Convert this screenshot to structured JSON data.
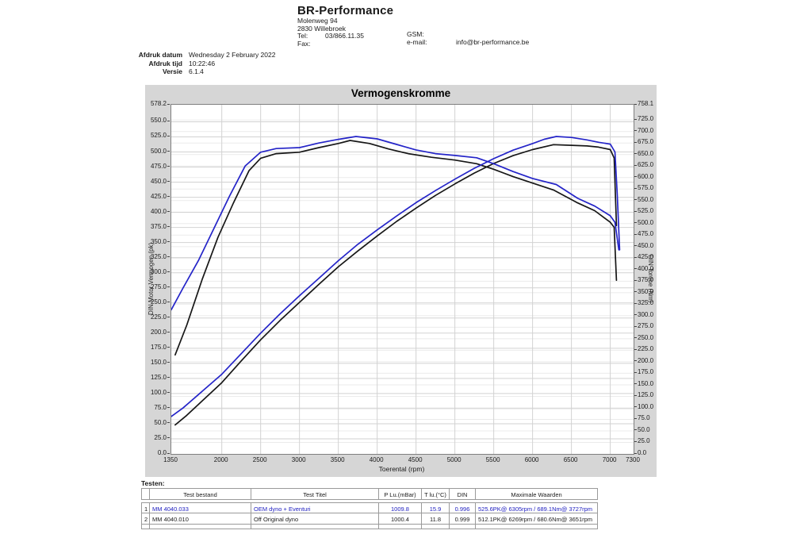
{
  "header": {
    "company": "BR-Performance",
    "address_line1": "Molenweg 94",
    "address_line2": "2830 Willebroek",
    "tel_label": "Tel:",
    "tel_value": "03/866.11.35",
    "fax_label": "Fax:",
    "fax_value": "",
    "gsm_label": "GSM:",
    "gsm_value": "",
    "email_label": "e-mail:",
    "email_value": "info@br-performance.be"
  },
  "meta": {
    "rows": [
      {
        "label": "Afdruk datum",
        "value": "Wednesday 2 February 2022"
      },
      {
        "label": "Afdruk tijd",
        "value": "10:22:46"
      },
      {
        "label": "Versie",
        "value": "6.1.4"
      }
    ]
  },
  "chart_data": {
    "type": "line",
    "title": "Vermogenskromme",
    "xlabel": "Toerental (rpm)",
    "ylabel_left": "DIN Motor Vermogen (pk)",
    "ylabel_right": "DIN Torque (Nm)",
    "x_range": [
      1350,
      7300
    ],
    "y_left_range": [
      0,
      578.2
    ],
    "y_right_range": [
      0,
      758.1
    ],
    "grid": true,
    "x_ticks": [
      "1350",
      "2000",
      "2500",
      "3000",
      "3500",
      "4000",
      "4500",
      "5000",
      "5500",
      "6000",
      "6500",
      "7000",
      "7300"
    ],
    "y_left_ticks": [
      "578.2",
      "550.0",
      "525.0",
      "500.0",
      "475.0",
      "450.0",
      "425.0",
      "400.0",
      "375.0",
      "350.0",
      "325.0",
      "300.0",
      "275.0",
      "250.0",
      "225.0",
      "200.0",
      "175.0",
      "150.0",
      "125.0",
      "100.0",
      "75.0",
      "50.0",
      "25.0",
      "0.0"
    ],
    "y_right_ticks": [
      "758.1",
      "725.0",
      "700.0",
      "675.0",
      "650.0",
      "625.0",
      "600.0",
      "575.0",
      "550.0",
      "525.0",
      "500.0",
      "475.0",
      "450.0",
      "425.0",
      "400.0",
      "375.0",
      "350.0",
      "325.0",
      "300.0",
      "275.0",
      "250.0",
      "225.0",
      "200.0",
      "175.0",
      "150.0",
      "125.0",
      "100.0",
      "75.0",
      "50.0",
      "25.0",
      "0.0"
    ],
    "colors": {
      "run1": "#2424c8",
      "run2": "#161616",
      "grid_major": "#d2d2d2",
      "grid_minor": "#ebebeb",
      "plot_border": "#7f7f7f"
    },
    "series": [
      {
        "name": "Off Original dyno - vermogen (pk)",
        "axis": "left",
        "color": "#161616",
        "points": [
          [
            1400,
            48
          ],
          [
            1550,
            64
          ],
          [
            1750,
            88
          ],
          [
            2000,
            118
          ],
          [
            2250,
            154
          ],
          [
            2500,
            189
          ],
          [
            2750,
            221
          ],
          [
            3000,
            251
          ],
          [
            3250,
            281
          ],
          [
            3500,
            310
          ],
          [
            3750,
            336
          ],
          [
            4000,
            361
          ],
          [
            4250,
            385
          ],
          [
            4500,
            407
          ],
          [
            4750,
            428
          ],
          [
            5000,
            447
          ],
          [
            5250,
            465
          ],
          [
            5500,
            481
          ],
          [
            5750,
            494
          ],
          [
            6000,
            504
          ],
          [
            6269,
            512.1
          ],
          [
            6500,
            511
          ],
          [
            6700,
            510
          ],
          [
            6850,
            508
          ],
          [
            7000,
            504
          ],
          [
            7050,
            490
          ],
          [
            7080,
            378
          ]
        ]
      },
      {
        "name": "Off Original dyno - koppel (Nm)",
        "axis": "right",
        "color": "#161616",
        "points": [
          [
            1400,
            215
          ],
          [
            1550,
            280
          ],
          [
            1750,
            380
          ],
          [
            1950,
            470
          ],
          [
            2150,
            545
          ],
          [
            2350,
            615
          ],
          [
            2500,
            642
          ],
          [
            2700,
            652
          ],
          [
            3000,
            655
          ],
          [
            3250,
            665
          ],
          [
            3500,
            674
          ],
          [
            3651,
            680.6
          ],
          [
            3900,
            674
          ],
          [
            4150,
            662
          ],
          [
            4400,
            652
          ],
          [
            4700,
            644
          ],
          [
            5000,
            638
          ],
          [
            5280,
            630
          ],
          [
            5500,
            618
          ],
          [
            5750,
            602
          ],
          [
            6000,
            588
          ],
          [
            6269,
            573
          ],
          [
            6580,
            545
          ],
          [
            6800,
            528
          ],
          [
            7000,
            503
          ],
          [
            7050,
            492
          ],
          [
            7080,
            377
          ]
        ]
      },
      {
        "name": "OEM dyno + Eventuri - vermogen (pk)",
        "axis": "left",
        "color": "#2424c8",
        "points": [
          [
            1350,
            62
          ],
          [
            1500,
            76
          ],
          [
            1750,
            104
          ],
          [
            2000,
            132
          ],
          [
            2250,
            166
          ],
          [
            2500,
            200
          ],
          [
            2750,
            232
          ],
          [
            3000,
            262
          ],
          [
            3250,
            291
          ],
          [
            3500,
            320
          ],
          [
            3750,
            347
          ],
          [
            4000,
            371
          ],
          [
            4250,
            394
          ],
          [
            4500,
            416
          ],
          [
            4750,
            436
          ],
          [
            5000,
            455
          ],
          [
            5250,
            473
          ],
          [
            5500,
            489
          ],
          [
            5750,
            503
          ],
          [
            6000,
            514
          ],
          [
            6150,
            521
          ],
          [
            6305,
            525.6
          ],
          [
            6500,
            524
          ],
          [
            6700,
            520
          ],
          [
            6850,
            516
          ],
          [
            7000,
            513
          ],
          [
            7060,
            500
          ],
          [
            7090,
            430
          ],
          [
            7120,
            338
          ]
        ]
      },
      {
        "name": "OEM dyno + Eventuri - koppel (Nm)",
        "axis": "right",
        "color": "#2424c8",
        "points": [
          [
            1350,
            313
          ],
          [
            1500,
            360
          ],
          [
            1700,
            420
          ],
          [
            1900,
            490
          ],
          [
            2100,
            560
          ],
          [
            2300,
            625
          ],
          [
            2500,
            655
          ],
          [
            2700,
            663
          ],
          [
            3000,
            665
          ],
          [
            3250,
            675
          ],
          [
            3500,
            683
          ],
          [
            3727,
            689.1
          ],
          [
            4000,
            684
          ],
          [
            4250,
            672
          ],
          [
            4500,
            660
          ],
          [
            4750,
            652
          ],
          [
            5000,
            648
          ],
          [
            5280,
            643
          ],
          [
            5500,
            630
          ],
          [
            5750,
            613
          ],
          [
            6000,
            598
          ],
          [
            6305,
            585
          ],
          [
            6580,
            555
          ],
          [
            6800,
            538
          ],
          [
            7000,
            517
          ],
          [
            7060,
            503
          ],
          [
            7110,
            443
          ]
        ]
      }
    ]
  },
  "footer": {
    "tests_label": "Testen:",
    "table": {
      "headers": [
        "",
        "Test bestand",
        "Test Titel",
        "P Lu.(mBar)",
        "T lu.(°C)",
        "DIN",
        "Maximale Waarden"
      ],
      "rows": [
        {
          "num": "1",
          "bestand": "MM 4040.033",
          "titel": "OEM dyno + Eventuri",
          "p_lu": "1009.8",
          "t_lu": "15.9",
          "din": "0.996",
          "max": "525.6PK@ 6305rpm / 689.1Nm@ 3727rpm",
          "color": "#2020c0"
        },
        {
          "num": "2",
          "bestand": "MM 4040.010",
          "titel": "Off Original dyno",
          "p_lu": "1000.4",
          "t_lu": "11.8",
          "din": "0.999",
          "max": "512.1PK@ 6269rpm / 680.6Nm@ 3651rpm",
          "color": "#1a1a1a"
        }
      ]
    }
  }
}
